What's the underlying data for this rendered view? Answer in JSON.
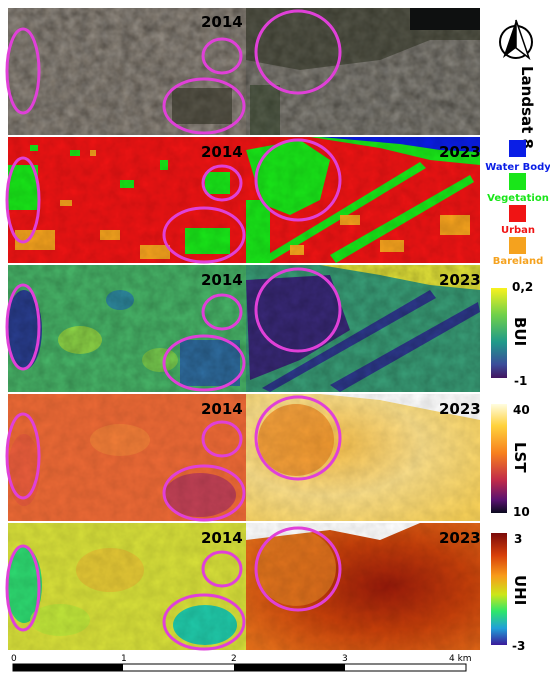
{
  "panels": [
    {
      "id": "rgb",
      "label_left": "2014",
      "label_right": ""
    },
    {
      "id": "landcover",
      "label_left": "2014",
      "label_right": "2023"
    },
    {
      "id": "bui",
      "label_left": "2014",
      "label_right": "2023"
    },
    {
      "id": "lst",
      "label_left": "2014",
      "label_right": "2023"
    },
    {
      "id": "uhi",
      "label_left": "2014",
      "label_right": "2023"
    }
  ],
  "sensor_label": "Landsat 8",
  "north_arrow": "north-arrow-icon",
  "landcover_legend": [
    {
      "label": "Water Body",
      "color": "#0a1ee6"
    },
    {
      "label": "Vegetation",
      "color": "#19e619"
    },
    {
      "label": "Urban",
      "color": "#f01414"
    },
    {
      "label": "Bareland",
      "color": "#f5a21e"
    }
  ],
  "colorbars": {
    "bui": {
      "title": "BUI",
      "max": "0,2",
      "min": "-1"
    },
    "lst": {
      "title": "LST",
      "max": "40",
      "min": "10"
    },
    "uhi": {
      "title": "UHI",
      "max": "3",
      "min": "-3"
    }
  },
  "scalebar": {
    "ticks": [
      "0",
      "1",
      "2",
      "3",
      "4 km"
    ]
  },
  "colors": {
    "highlight_circle": "#e040d8",
    "urban": "#f01414",
    "vegetation": "#19e619",
    "bareland": "#f5a21e",
    "water": "#0a1ee6"
  }
}
